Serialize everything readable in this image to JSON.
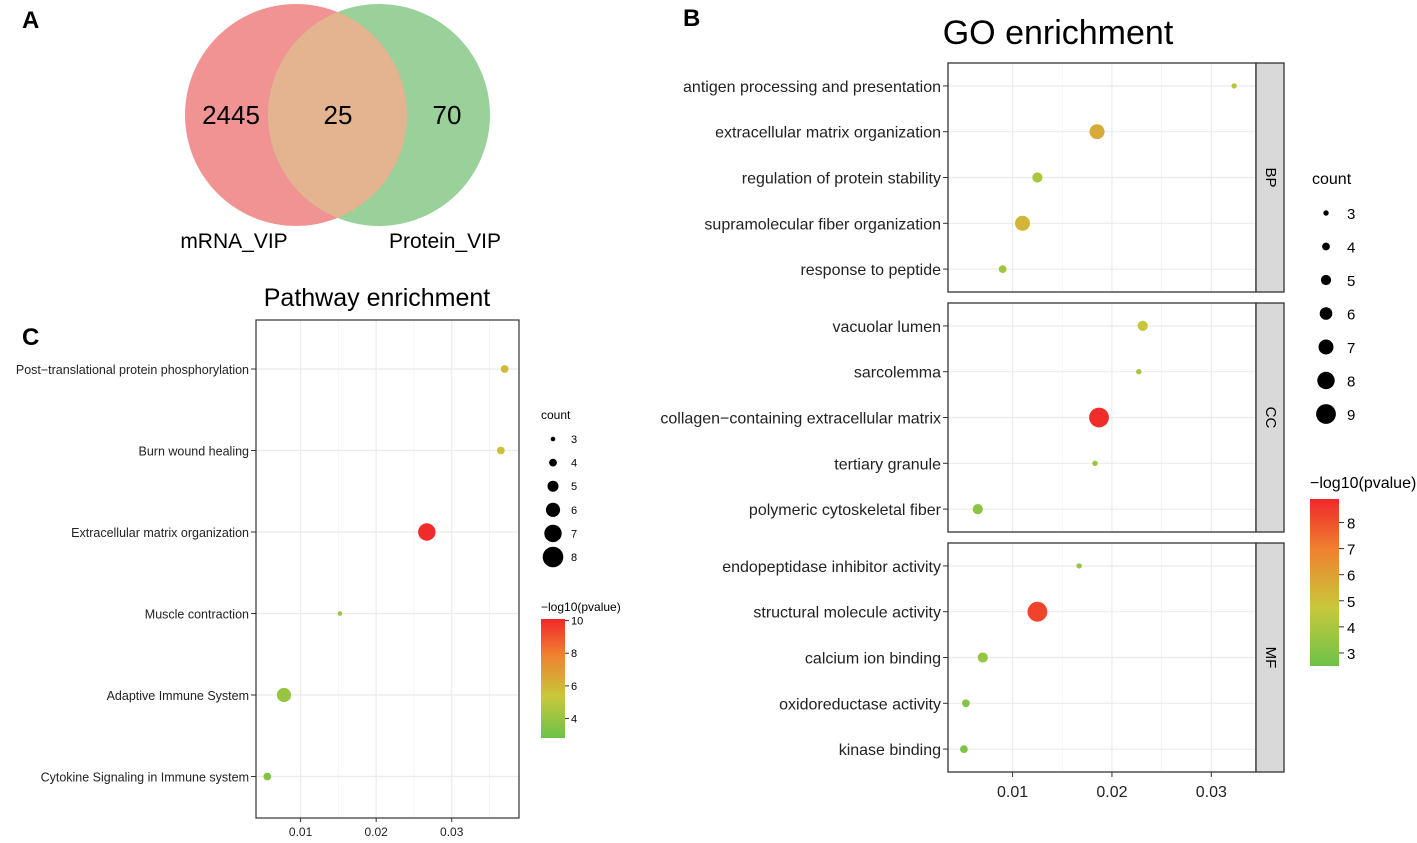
{
  "panels": {
    "a": "A",
    "b": "B",
    "c": "C"
  },
  "venn": {
    "left": {
      "label": "mRNA_VIP",
      "only_count": "2445",
      "color": "#ef8080"
    },
    "right": {
      "label": "Protein_VIP",
      "only_count": "70",
      "color": "#88c98a"
    },
    "overlap_count": "25",
    "overlap_color": "#e3b48f"
  },
  "colors": {
    "low": "#6cc24a",
    "mid": "#c8c83a",
    "high": "#f0282a",
    "grid": "#ebebeb",
    "strip": "#d9d9d9"
  },
  "chart_data": [
    {
      "id": "go",
      "type": "scatter",
      "title": "GO enrichment",
      "xlabel": "",
      "ylabel": "",
      "xlim": [
        0.0035,
        0.0345
      ],
      "xticks": [
        0.01,
        0.02,
        0.03
      ],
      "xtick_labels": [
        "0.01",
        "0.02",
        "0.03"
      ],
      "size_legend": {
        "title": "count",
        "values": [
          3,
          4,
          5,
          6,
          7,
          8,
          9
        ]
      },
      "color_legend": {
        "title": "−log10(pvalue)",
        "range": [
          2.5,
          8.9
        ],
        "ticks": [
          3,
          4,
          5,
          6,
          7,
          8
        ]
      },
      "facets": [
        {
          "name": "BP",
          "points": [
            {
              "term": "antigen processing and presentation",
              "x": 0.0323,
              "count": 3,
              "logp": 4.4
            },
            {
              "term": "extracellular matrix organization",
              "x": 0.0185,
              "count": 7,
              "logp": 5.6
            },
            {
              "term": "regulation of protein stability",
              "x": 0.0125,
              "count": 5,
              "logp": 4.0
            },
            {
              "term": "supramolecular fiber organization",
              "x": 0.011,
              "count": 7,
              "logp": 5.3
            },
            {
              "term": "response to peptide",
              "x": 0.009,
              "count": 4,
              "logp": 3.8
            }
          ]
        },
        {
          "name": "CC",
          "points": [
            {
              "term": "vacuolar lumen",
              "x": 0.0231,
              "count": 5,
              "logp": 4.8
            },
            {
              "term": "sarcolemma",
              "x": 0.0227,
              "count": 3,
              "logp": 4.0
            },
            {
              "term": "collagen−containing extracellular matrix",
              "x": 0.0187,
              "count": 9,
              "logp": 8.8
            },
            {
              "term": "tertiary granule",
              "x": 0.0183,
              "count": 3,
              "logp": 3.6
            },
            {
              "term": "polymeric cytoskeletal fiber",
              "x": 0.0065,
              "count": 5,
              "logp": 3.3
            }
          ]
        },
        {
          "name": "MF",
          "points": [
            {
              "term": "endopeptidase inhibitor activity",
              "x": 0.0167,
              "count": 3,
              "logp": 3.6
            },
            {
              "term": "structural molecule activity",
              "x": 0.0125,
              "count": 9,
              "logp": 8.3
            },
            {
              "term": "calcium ion binding",
              "x": 0.007,
              "count": 5,
              "logp": 3.5
            },
            {
              "term": "oxidoreductase activity",
              "x": 0.0053,
              "count": 4,
              "logp": 3.1
            },
            {
              "term": "kinase binding",
              "x": 0.0051,
              "count": 4,
              "logp": 2.9
            }
          ]
        }
      ]
    },
    {
      "id": "pathway",
      "type": "scatter",
      "title": "Pathway enrichment",
      "xlabel": "",
      "ylabel": "",
      "xlim": [
        0.0041,
        0.0389
      ],
      "xticks": [
        0.01,
        0.02,
        0.03
      ],
      "xtick_labels": [
        "0.01",
        "0.02",
        "0.03"
      ],
      "size_legend": {
        "title": "count",
        "values": [
          3,
          4,
          5,
          6,
          7,
          8
        ]
      },
      "color_legend": {
        "title": "−log10(pvalue)",
        "range": [
          2.8,
          10.1
        ],
        "ticks": [
          4,
          6,
          8,
          10
        ]
      },
      "points": [
        {
          "term": "Post−translational protein phosphorylation",
          "x": 0.037,
          "count": 4,
          "logp": 5.8
        },
        {
          "term": "Burn wound healing",
          "x": 0.0365,
          "count": 4,
          "logp": 5.6
        },
        {
          "term": "Extracellular matrix organization",
          "x": 0.0267,
          "count": 7,
          "logp": 10.0
        },
        {
          "term": "Muscle contraction",
          "x": 0.0152,
          "count": 3,
          "logp": 4.0
        },
        {
          "term": "Adaptive Immune System",
          "x": 0.0078,
          "count": 6,
          "logp": 4.0
        },
        {
          "term": "Cytokine Signaling in Immune system",
          "x": 0.0056,
          "count": 4,
          "logp": 3.4
        }
      ]
    }
  ]
}
